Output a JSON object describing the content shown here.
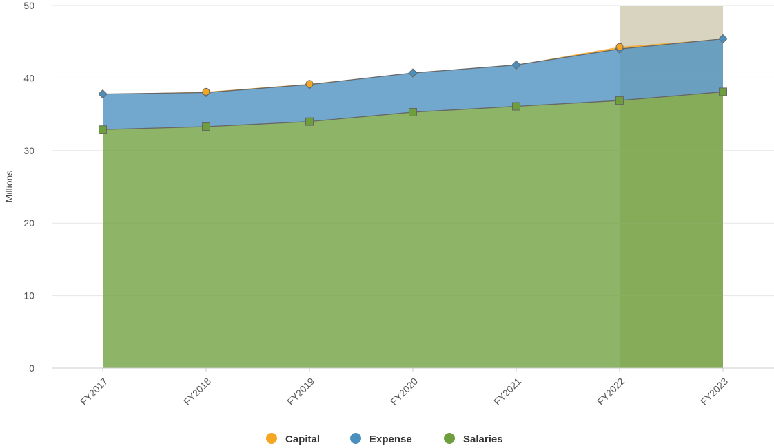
{
  "chart_data": {
    "type": "area",
    "stacked": true,
    "categories": [
      "FY2017",
      "FY2018",
      "FY2019",
      "FY2020",
      "FY2021",
      "FY2022",
      "FY2023"
    ],
    "ylabel": "Millions",
    "ylim": [
      0,
      50
    ],
    "yticks": [
      0,
      10,
      20,
      30,
      40,
      50
    ],
    "grid": true,
    "legend": "bottom-center",
    "highlight_category_index": 5,
    "series": [
      {
        "name": "Salaries",
        "color": "#6e9f3c",
        "values": [
          32.9,
          33.3,
          34.0,
          35.3,
          36.1,
          36.9,
          38.1
        ]
      },
      {
        "name": "Expense",
        "color": "#4a90bf",
        "values": [
          4.9,
          4.7,
          5.1,
          5.4,
          5.7,
          7.1,
          7.3
        ]
      },
      {
        "name": "Capital",
        "color": "#f5a623",
        "values": [
          0.0,
          0.1,
          0.1,
          0.0,
          0.0,
          0.3,
          0.0
        ]
      }
    ],
    "legend_order": [
      "Capital",
      "Expense",
      "Salaries"
    ]
  }
}
